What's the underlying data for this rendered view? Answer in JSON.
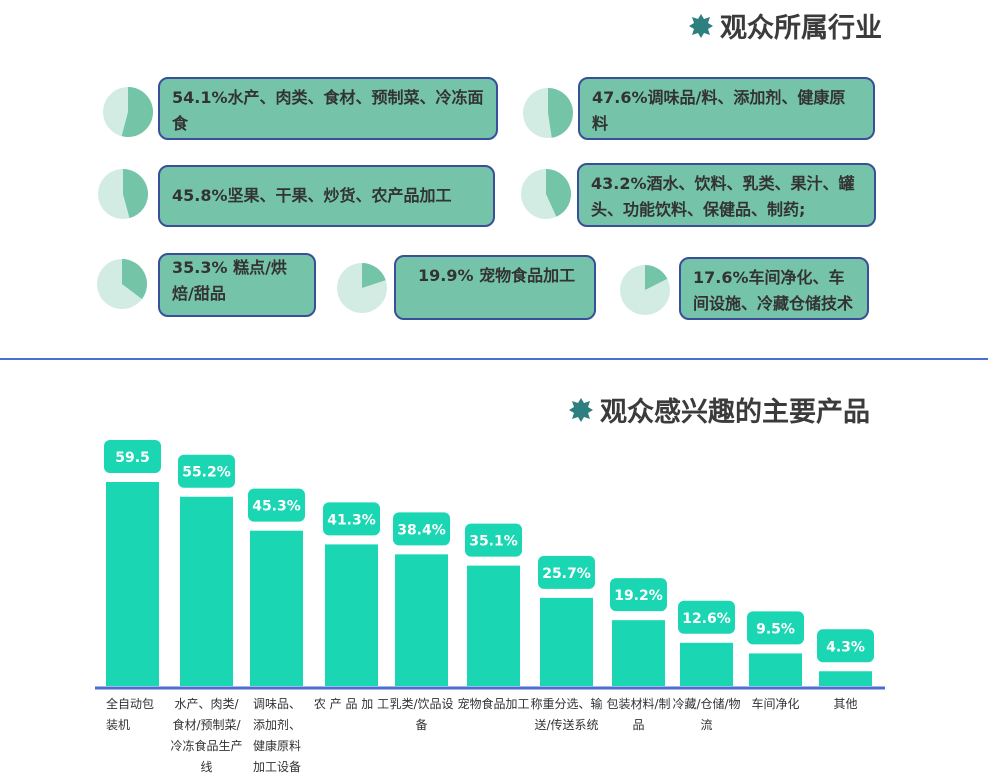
{
  "industry_section": {
    "title": "观众所属行业",
    "items": [
      {
        "percent": 54.1,
        "text": "54.1%水产、肉类、食材、预制菜、冷冻面食"
      },
      {
        "percent": 47.6,
        "text": "47.6%调味品/料、添加剂、健康原料"
      },
      {
        "percent": 45.8,
        "text": "45.8%坚果、干果、炒货、农产品加工"
      },
      {
        "percent": 43.2,
        "text": "43.2%酒水、饮料、乳类、果汁、罐头、功能饮料、保健品、制药;"
      },
      {
        "percent": 35.3,
        "text": "35.3% 糕点/烘焙/甜品"
      },
      {
        "percent": 19.9,
        "text": "19.9% 宠物食品加工"
      },
      {
        "percent": 17.6,
        "text": "17.6%车间净化、车间设施、冷藏仓储技术"
      }
    ],
    "colors": {
      "pie_dark": "#74c4a8",
      "pie_light": "#d3ece3",
      "box_fill": "#75c4aa",
      "box_border": "#3a4f9a"
    }
  },
  "chart_data": {
    "type": "bar",
    "title": "观众感兴趣的主要产品",
    "categories": [
      "全自动包装机",
      "水产、肉类/食材/预制菜/冷冻食品生产线",
      "调味品、添加剂、健康原料加工设备",
      "农 产 品 加 工",
      "乳类/饮品设备",
      "宠物食品加工",
      "称重分选、输送/传送系统",
      "包装材料/制品",
      "冷藏/仓储/物流",
      "车间净化",
      "其他"
    ],
    "values": [
      59.5,
      55.2,
      45.3,
      41.3,
      38.4,
      35.1,
      25.7,
      19.2,
      12.6,
      9.5,
      4.3
    ],
    "data_labels": [
      "59.5",
      "55.2%",
      "45.3%",
      "41.3%",
      "38.4%",
      "35.1%",
      "25.7%",
      "19.2%",
      "12.6%",
      "9.5%",
      "4.3%"
    ],
    "ylim": [
      0,
      60
    ],
    "grid": false,
    "colors": {
      "bar": "#1bd6b3",
      "axis": "#4a6fd0"
    }
  },
  "accent_color": "#2e7f80"
}
